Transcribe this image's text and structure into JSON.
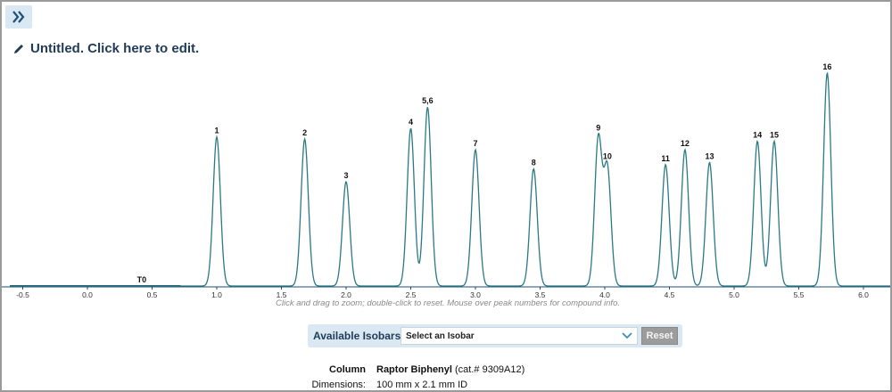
{
  "header": {
    "expand_icon": "double-chevron-right-icon",
    "title": "Untitled. Click here to edit.",
    "title_icon": "pencil-icon"
  },
  "hint_text": "Click and drag to zoom; double-click to reset. Mouse over peak numbers for compound info.",
  "isobars": {
    "label": "Available Isobars:",
    "select_value": "Select an Isobar",
    "reset_label": "Reset"
  },
  "column_info": {
    "column_key": "Column",
    "column_name": "Raptor Biphenyl",
    "column_cat": "(cat.# 9309A12)",
    "dimensions_key": "Dimensions:",
    "dimensions_value": "100 mm x 2.1 mm ID"
  },
  "colors": {
    "trace": "#2a7a84",
    "baseline_dark": "#1e4e6e",
    "axis": "#1e4e6e",
    "title": "#1f3b57",
    "accent_bg": "#d9e8f3"
  },
  "chart_data": {
    "type": "line",
    "xlim": [
      -0.6,
      6.25
    ],
    "x_ticks": [
      "-0.5",
      "0.0",
      "0.5",
      "1.0",
      "1.5",
      "2.0",
      "2.5",
      "3.0",
      "3.5",
      "4.0",
      "4.5",
      "5.0",
      "5.5",
      "6.0"
    ],
    "t0_label": "T0",
    "t0_x": 0.42,
    "peaks": [
      {
        "label": "1",
        "x": 1.0,
        "height": 0.7
      },
      {
        "label": "2",
        "x": 1.68,
        "height": 0.69
      },
      {
        "label": "3",
        "x": 2.0,
        "height": 0.49
      },
      {
        "label": "4",
        "x": 2.5,
        "height": 0.74
      },
      {
        "label": "5,6",
        "x": 2.63,
        "height": 0.84
      },
      {
        "label": "7",
        "x": 3.0,
        "height": 0.64
      },
      {
        "label": "8",
        "x": 3.45,
        "height": 0.55
      },
      {
        "label": "9",
        "x": 3.95,
        "height": 0.69
      },
      {
        "label": "10",
        "x": 4.02,
        "height": 0.55
      },
      {
        "label": "11",
        "x": 4.47,
        "height": 0.57
      },
      {
        "label": "12",
        "x": 4.62,
        "height": 0.64
      },
      {
        "label": "13",
        "x": 4.81,
        "height": 0.58
      },
      {
        "label": "14",
        "x": 5.18,
        "height": 0.68
      },
      {
        "label": "15",
        "x": 5.31,
        "height": 0.68
      },
      {
        "label": "16",
        "x": 5.72,
        "height": 1.0
      }
    ]
  }
}
